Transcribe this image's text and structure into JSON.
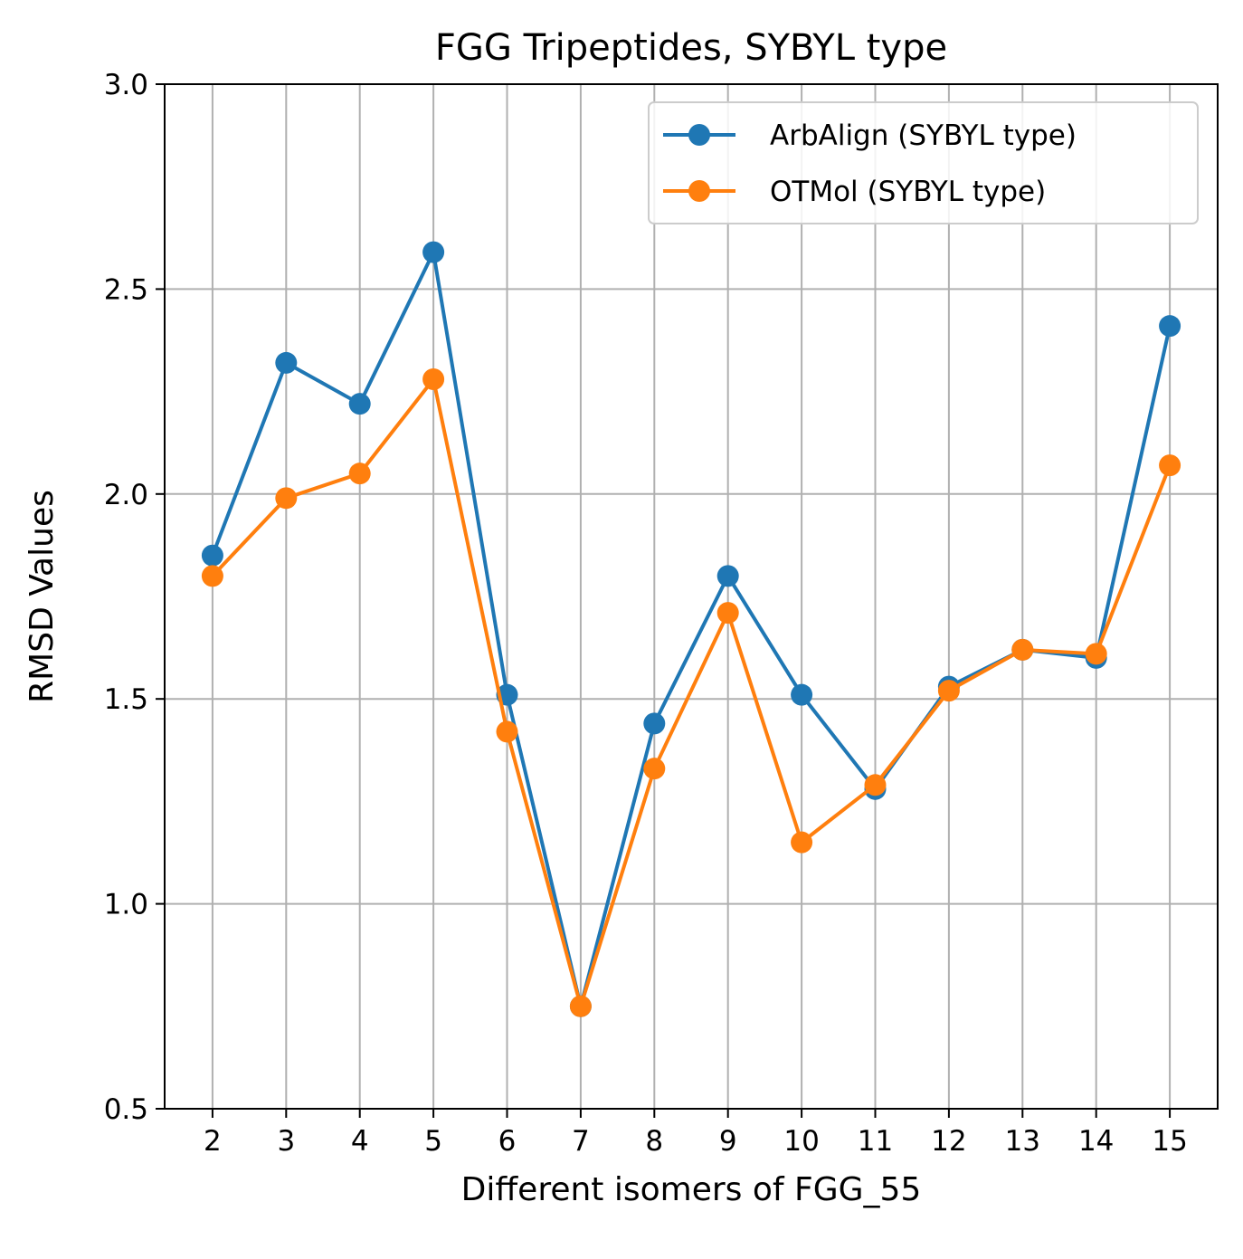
{
  "chart_data": {
    "type": "line",
    "title": "FGG Tripeptides, SYBYL type",
    "xlabel": "Different isomers of FGG_55",
    "ylabel": "RMSD Values",
    "x": [
      2,
      3,
      4,
      5,
      6,
      7,
      8,
      9,
      10,
      11,
      12,
      13,
      14,
      15
    ],
    "x_tick_labels": [
      "2",
      "3",
      "4",
      "5",
      "6",
      "7",
      "8",
      "9",
      "10",
      "11",
      "12",
      "13",
      "14",
      "15"
    ],
    "xlim": [
      1.35,
      15.65
    ],
    "ylim": [
      0.5,
      3.0
    ],
    "y_ticks": [
      0.5,
      1.0,
      1.5,
      2.0,
      2.5,
      3.0
    ],
    "y_tick_labels": [
      "0.5",
      "1.0",
      "1.5",
      "2.0",
      "2.5",
      "3.0"
    ],
    "grid": true,
    "legend_position": "top-right",
    "series": [
      {
        "name": "ArbAlign (SYBYL type)",
        "color": "#1f77b4",
        "marker": "circle",
        "values": [
          1.85,
          2.32,
          2.22,
          2.59,
          1.51,
          0.75,
          1.44,
          1.8,
          1.51,
          1.28,
          1.53,
          1.62,
          1.6,
          2.41
        ]
      },
      {
        "name": "OTMol (SYBYL type)",
        "color": "#ff7f0e",
        "marker": "circle",
        "values": [
          1.8,
          1.99,
          2.05,
          2.28,
          1.42,
          0.75,
          1.33,
          1.71,
          1.15,
          1.29,
          1.52,
          1.62,
          1.61,
          2.07
        ]
      }
    ]
  }
}
